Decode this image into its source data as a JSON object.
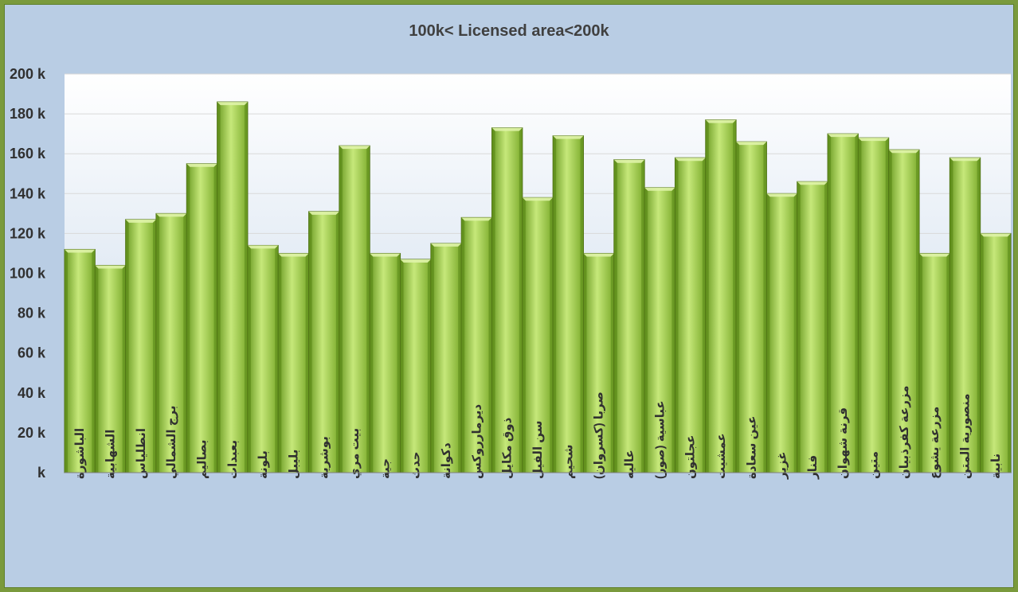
{
  "chart_data": {
    "type": "bar",
    "title": "100k< Licensed area<200k",
    "xlabel": "",
    "ylabel": "",
    "ylim": [
      0,
      200
    ],
    "ytick_values": [
      0,
      20,
      40,
      60,
      80,
      100,
      120,
      140,
      160,
      180,
      200
    ],
    "ytick_labels": [
      "k",
      "20 k",
      "40 k",
      "60 k",
      "80 k",
      "100 k",
      "120 k",
      "140 k",
      "160 k",
      "180 k",
      "200 k"
    ],
    "grid": true,
    "legend": "none",
    "categories": [
      "الباشورة",
      "الشهابية",
      "انطلياس",
      "برج الشمالي",
      "بصاليم",
      "بعبدات",
      "بلونة",
      "بليبل",
      "بوشرية",
      "بيت مري",
      "جية",
      "حدث",
      "دكوانة",
      "ديرمارروكس",
      "ذوق مكايل",
      "سن الفيل",
      "شحيم",
      "صربا (كسروان)",
      "عاليه",
      "عباسية (صور)",
      "عجلتون",
      "عمشيت",
      "عين سعادة",
      "غزير",
      "فنار",
      "قرنة شهوان",
      "متين",
      "مزرعة كفرذبيان",
      "مزرعة يشوع",
      "منصورية المتن",
      "نابية"
    ],
    "values": [
      112,
      104,
      127,
      130,
      155,
      186,
      114,
      110,
      131,
      164,
      110,
      107,
      115,
      128,
      173,
      138,
      169,
      110,
      157,
      143,
      158,
      177,
      166,
      140,
      146,
      170,
      168,
      162,
      110,
      158,
      120
    ],
    "colors": {
      "bar_light": "#c6e87a",
      "bar_mid": "#9ccc45",
      "bar_dark": "#6a9a22",
      "bar_edge": "#4d6e14",
      "plot_top": "#ffffff",
      "plot_bottom": "#c6d7ea",
      "frame_bg": "#b9cde4",
      "border": "#7a9a3c"
    }
  }
}
